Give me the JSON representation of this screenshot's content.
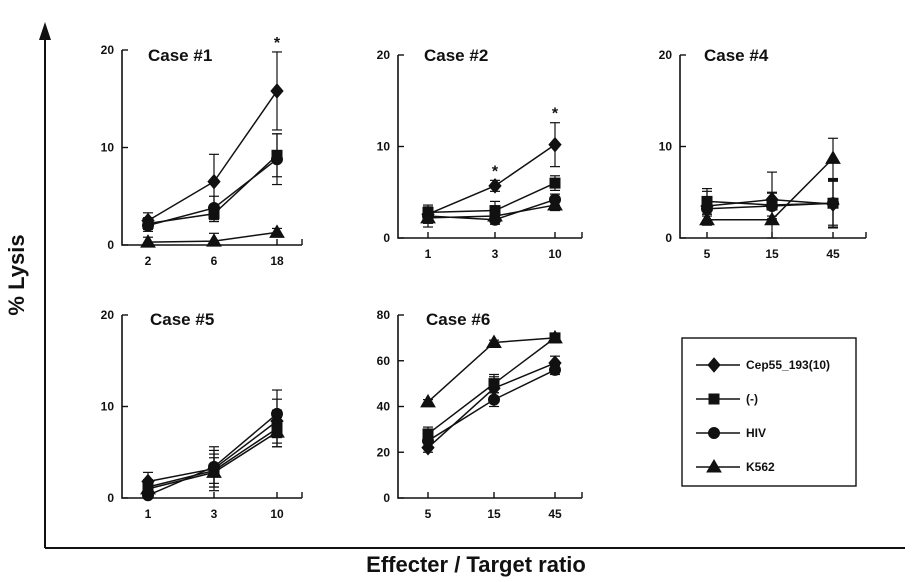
{
  "figure": {
    "ylabel": "% Lysis",
    "xlabel": "Effecter / Target ratio"
  },
  "legend": {
    "items": [
      {
        "name": "Cep55_193(10)",
        "marker": "diamond"
      },
      {
        "name": "(-)",
        "marker": "square"
      },
      {
        "name": "HIV",
        "marker": "circle"
      },
      {
        "name": "K562",
        "marker": "triangle"
      }
    ]
  },
  "chart_data": [
    {
      "type": "line",
      "title": "Case #1",
      "categories": [
        "2",
        "6",
        "18"
      ],
      "ylim": [
        0,
        20
      ],
      "yticks": [
        "0",
        "10",
        "20"
      ],
      "series": [
        {
          "name": "Cep55_193(10)",
          "marker": "diamond",
          "values": [
            2.5,
            6.5,
            15.8
          ],
          "errors": [
            0.8,
            2.8,
            4.0
          ]
        },
        {
          "name": "(-)",
          "marker": "square",
          "values": [
            2.2,
            3.2,
            9.2
          ],
          "errors": [
            0.6,
            0.8,
            2.2
          ]
        },
        {
          "name": "HIV",
          "marker": "circle",
          "values": [
            2.0,
            3.8,
            8.8
          ],
          "errors": [
            0.6,
            1.2,
            2.6
          ]
        },
        {
          "name": "K562",
          "marker": "triangle",
          "values": [
            0.3,
            0.4,
            1.3
          ],
          "errors": [
            0.5,
            0.8,
            0.4
          ]
        }
      ],
      "significant": [
        "",
        "",
        "*"
      ]
    },
    {
      "type": "line",
      "title": "Case #2",
      "categories": [
        "1",
        "3",
        "10"
      ],
      "ylim": [
        0,
        20
      ],
      "yticks": [
        "0",
        "10",
        "20"
      ],
      "series": [
        {
          "name": "Cep55_193(10)",
          "marker": "diamond",
          "values": [
            2.6,
            5.7,
            10.2
          ],
          "errors": [
            0.6,
            0.6,
            2.4
          ]
        },
        {
          "name": "(-)",
          "marker": "square",
          "values": [
            2.8,
            3.0,
            6.0
          ],
          "errors": [
            0.6,
            1.0,
            0.8
          ]
        },
        {
          "name": "HIV",
          "marker": "circle",
          "values": [
            2.4,
            2.0,
            4.2
          ],
          "errors": [
            1.2,
            0.5,
            0.6
          ]
        },
        {
          "name": "K562",
          "marker": "triangle",
          "values": [
            2.2,
            2.4,
            3.6
          ],
          "errors": [
            0.6,
            0.6,
            0.6
          ]
        }
      ],
      "significant": [
        "",
        "*",
        "*"
      ]
    },
    {
      "type": "line",
      "title": "Case #4",
      "categories": [
        "5",
        "15",
        "45"
      ],
      "ylim": [
        0,
        20
      ],
      "yticks": [
        "0",
        "10",
        "20"
      ],
      "series": [
        {
          "name": "Cep55_193(10)",
          "marker": "diamond",
          "values": [
            3.5,
            4.2,
            3.7
          ],
          "errors": [
            1.6,
            0.8,
            2.6
          ]
        },
        {
          "name": "(-)",
          "marker": "square",
          "values": [
            4.0,
            3.6,
            3.8
          ],
          "errors": [
            1.4,
            3.6,
            2.6
          ]
        },
        {
          "name": "HIV",
          "marker": "circle",
          "values": [
            3.2,
            3.5,
            3.8
          ],
          "errors": [
            0.8,
            1.4,
            2.4
          ]
        },
        {
          "name": "K562",
          "marker": "triangle",
          "values": [
            2.0,
            2.0,
            8.7
          ],
          "errors": [
            0.6,
            0.4,
            2.2
          ]
        }
      ],
      "significant": [
        "",
        "",
        ""
      ]
    },
    {
      "type": "line",
      "title": "Case #5",
      "categories": [
        "1",
        "3",
        "10"
      ],
      "ylim": [
        0,
        20
      ],
      "yticks": [
        "0",
        "10",
        "20"
      ],
      "series": [
        {
          "name": "Cep55_193(10)",
          "marker": "diamond",
          "values": [
            1.8,
            3.2,
            8.4
          ],
          "errors": [
            1.0,
            2.4,
            2.4
          ]
        },
        {
          "name": "(-)",
          "marker": "square",
          "values": [
            1.2,
            3.0,
            7.6
          ],
          "errors": [
            0.8,
            1.8,
            2.0
          ]
        },
        {
          "name": "HIV",
          "marker": "circle",
          "values": [
            0.3,
            3.4,
            9.2
          ],
          "errors": [
            0.6,
            1.8,
            2.6
          ]
        },
        {
          "name": "K562",
          "marker": "triangle",
          "values": [
            1.0,
            2.8,
            7.2
          ],
          "errors": [
            0.8,
            1.6,
            1.6
          ]
        }
      ],
      "significant": [
        "",
        "",
        ""
      ]
    },
    {
      "type": "line",
      "title": "Case #6",
      "categories": [
        "5",
        "15",
        "45"
      ],
      "ylim": [
        0,
        80
      ],
      "yticks": [
        "0",
        "20",
        "40",
        "60",
        "80"
      ],
      "series": [
        {
          "name": "Cep55_193(10)",
          "marker": "diamond",
          "values": [
            22,
            48,
            59
          ],
          "errors": [
            2,
            5,
            3
          ]
        },
        {
          "name": "(-)",
          "marker": "square",
          "values": [
            28,
            50,
            70
          ],
          "errors": [
            3,
            4,
            2
          ]
        },
        {
          "name": "HIV",
          "marker": "circle",
          "values": [
            25,
            43,
            56
          ],
          "errors": [
            3,
            3,
            2
          ]
        },
        {
          "name": "K562",
          "marker": "triangle",
          "values": [
            42,
            68,
            70
          ],
          "errors": [
            1,
            1,
            1
          ]
        }
      ],
      "significant": [
        "",
        "",
        ""
      ]
    }
  ]
}
